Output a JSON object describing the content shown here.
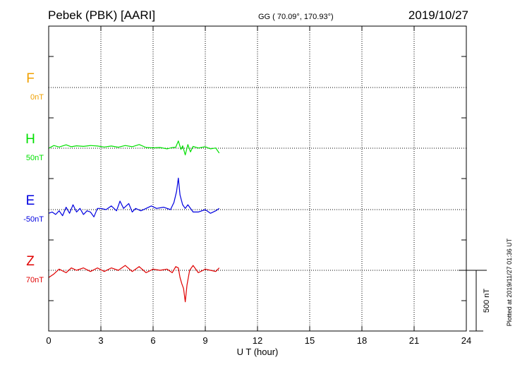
{
  "header": {
    "station": "Pebek (PBK)  [AARI]",
    "coords": "GG ( 70.09°, 170.93°)",
    "date": "2019/10/27"
  },
  "footer_note": "Plotted at 2019/11/27 01:36 UT",
  "chart_data": {
    "type": "line",
    "title": "",
    "xlabel": "U T (hour)",
    "ylabel": "",
    "xlim": [
      0,
      24
    ],
    "xticks": [
      0,
      3,
      6,
      9,
      12,
      15,
      18,
      21,
      24
    ],
    "xtick_labels": [
      "0",
      "3",
      "6",
      "9",
      "12",
      "15",
      "18",
      "21",
      "24"
    ],
    "grid": true,
    "scale_bar": {
      "value": 500,
      "label": "500 nT"
    },
    "series": [
      {
        "name": "F",
        "offset_label": "0nT",
        "color": "#f0a000",
        "x": [],
        "values": []
      },
      {
        "name": "H",
        "offset_label": "50nT",
        "color": "#00e000",
        "x": [
          0,
          0.3,
          0.6,
          1.0,
          1.3,
          1.6,
          2.0,
          2.4,
          2.8,
          3.2,
          3.6,
          4.0,
          4.4,
          4.8,
          5.2,
          5.6,
          6.0,
          6.4,
          6.8,
          7.1,
          7.3,
          7.45,
          7.6,
          7.7,
          7.85,
          8.0,
          8.15,
          8.3,
          8.6,
          9.0,
          9.3,
          9.6,
          9.8
        ],
        "values": [
          0,
          22,
          10,
          28,
          12,
          20,
          15,
          22,
          18,
          10,
          18,
          8,
          22,
          12,
          30,
          6,
          3,
          6,
          -5,
          5,
          8,
          60,
          -10,
          20,
          -55,
          30,
          -30,
          15,
          2,
          12,
          -5,
          2,
          -40
        ]
      },
      {
        "name": "E",
        "offset_label": "-50nT",
        "color": "#0000e0",
        "x": [
          0,
          0.2,
          0.4,
          0.6,
          0.8,
          1.0,
          1.2,
          1.4,
          1.6,
          1.8,
          2.0,
          2.2,
          2.4,
          2.6,
          2.8,
          3.0,
          3.3,
          3.6,
          3.9,
          4.1,
          4.3,
          4.6,
          4.8,
          5.0,
          5.3,
          5.6,
          5.9,
          6.2,
          6.6,
          7.0,
          7.2,
          7.35,
          7.45,
          7.55,
          7.7,
          7.85,
          8.0,
          8.3,
          8.6,
          9.0,
          9.3,
          9.6,
          9.8
        ],
        "values": [
          -30,
          -20,
          -40,
          -10,
          -50,
          20,
          -30,
          40,
          -20,
          10,
          -40,
          -10,
          -20,
          -60,
          10,
          10,
          0,
          30,
          -10,
          70,
          10,
          50,
          -20,
          10,
          -10,
          10,
          30,
          10,
          20,
          0,
          60,
          150,
          260,
          120,
          40,
          10,
          40,
          -20,
          -20,
          0,
          -30,
          -10,
          10
        ]
      },
      {
        "name": "Z",
        "offset_label": "70nT",
        "color": "#e00000",
        "x": [
          0,
          0.3,
          0.6,
          1.0,
          1.3,
          1.6,
          2.0,
          2.4,
          2.8,
          3.2,
          3.6,
          4.0,
          4.4,
          4.8,
          5.2,
          5.6,
          6.0,
          6.4,
          6.8,
          7.1,
          7.3,
          7.45,
          7.55,
          7.65,
          7.75,
          7.85,
          7.95,
          8.1,
          8.3,
          8.6,
          9.0,
          9.3,
          9.6,
          9.8
        ],
        "values": [
          -60,
          -30,
          10,
          -20,
          20,
          0,
          20,
          -10,
          20,
          -10,
          20,
          0,
          40,
          -10,
          30,
          -20,
          10,
          0,
          10,
          -20,
          30,
          20,
          -60,
          -110,
          -150,
          -260,
          -120,
          0,
          40,
          -20,
          10,
          0,
          -10,
          20
        ]
      }
    ]
  }
}
